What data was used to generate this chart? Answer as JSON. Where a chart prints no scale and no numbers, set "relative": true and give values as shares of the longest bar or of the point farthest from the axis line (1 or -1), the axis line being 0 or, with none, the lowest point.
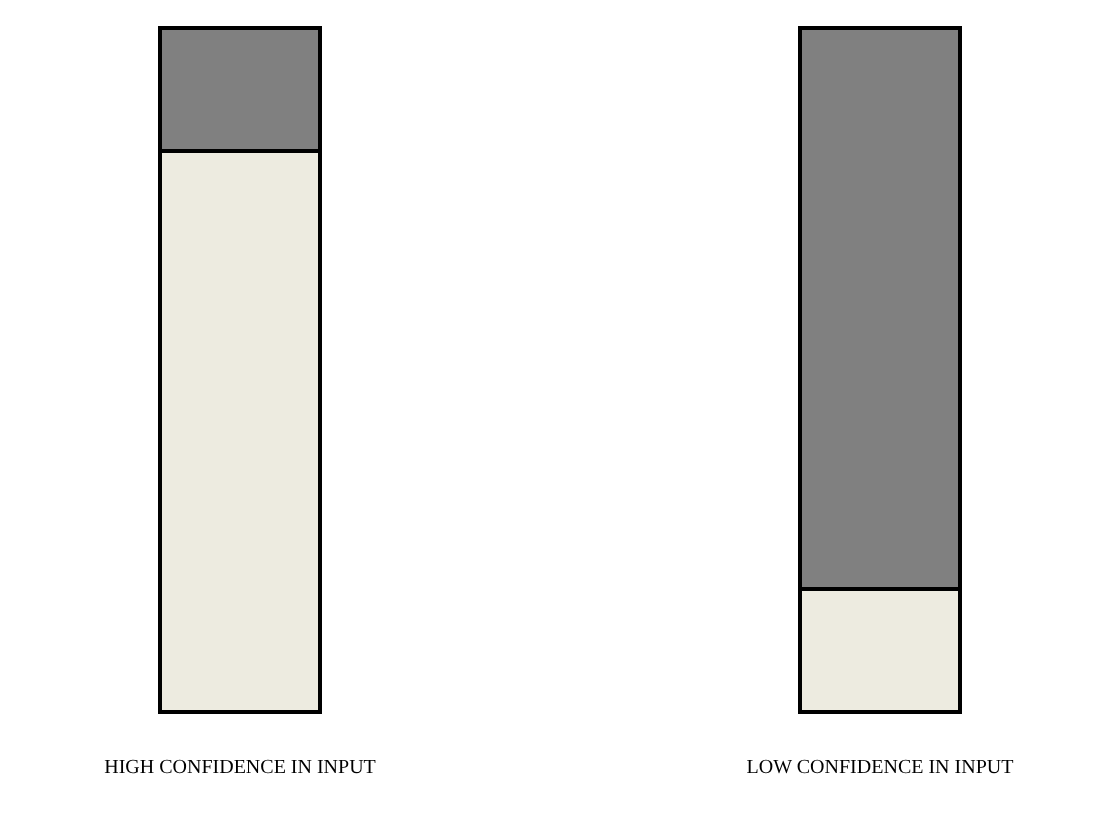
{
  "chart_data": {
    "type": "bar",
    "relative": true,
    "stacked": true,
    "categories": [
      "HIGH CONFIDENCE IN INPUT",
      "LOW CONFIDENCE IN INPUT"
    ],
    "series": [
      {
        "color": "#edebe0",
        "values": [
          0.82,
          0.18
        ]
      },
      {
        "color": "#808080",
        "values": [
          0.18,
          0.82
        ]
      }
    ]
  }
}
